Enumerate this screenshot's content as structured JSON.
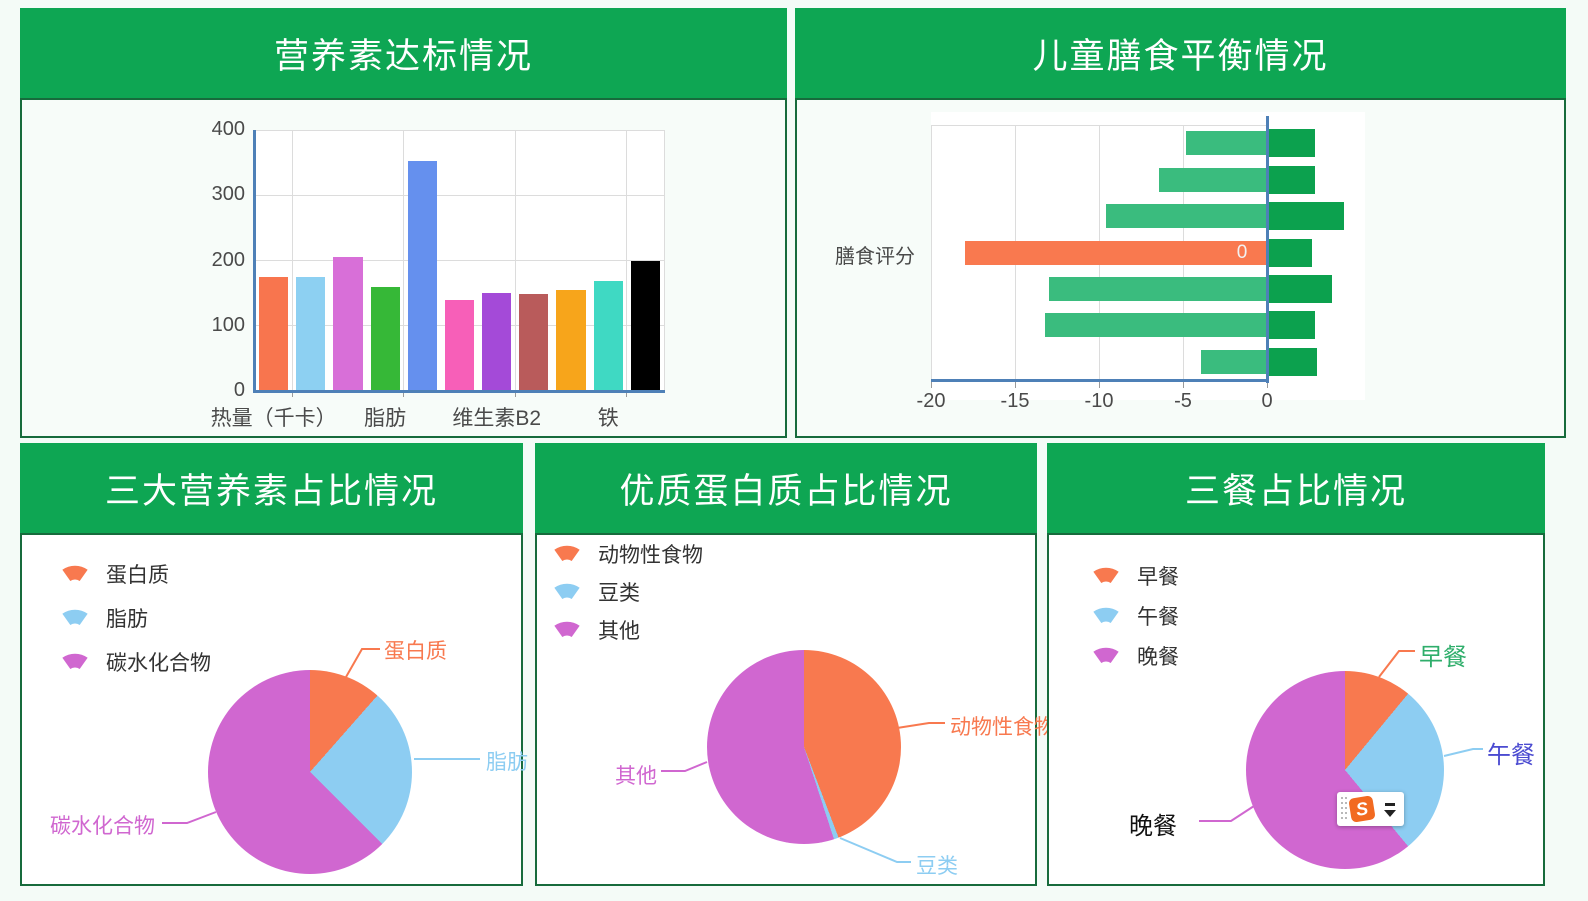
{
  "colors": {
    "header_green": "#0ea653",
    "panel_border_green": "#176b3c",
    "page_background": "#f4fbf7",
    "axis_blue": "#4e80b7",
    "grid_line": "#dcdcdc",
    "tick_text": "#4a4a4a",
    "legend_text": "#333333"
  },
  "chart_data": [
    {
      "type": "bar",
      "title": "营养素达标情况",
      "ylabel": "",
      "ylim": [
        0,
        400
      ],
      "yticks": [
        0,
        100,
        200,
        300,
        400
      ],
      "num_categories": 11,
      "visible_x_labels": [
        {
          "label": "热量（千卡）",
          "category": 1
        },
        {
          "label": "脂肪",
          "category": 4
        },
        {
          "label": "维生素B2",
          "category": 7
        },
        {
          "label": "铁",
          "category": 10
        }
      ],
      "values": [
        175,
        175,
        205,
        160,
        352,
        140,
        150,
        148,
        155,
        168,
        200
      ],
      "bar_colors": [
        "#f8754e",
        "#8dd0f2",
        "#d86fd8",
        "#36b837",
        "#6590ee",
        "#f75fb8",
        "#a44ad8",
        "#b95b5b",
        "#f7a51b",
        "#3fd9c3",
        "#000000"
      ],
      "grid": true
    },
    {
      "type": "bar-horizontal",
      "title": "儿童膳食平衡情况",
      "axis_label": "膳食评分",
      "axis_label_row": 3,
      "xticks": [
        -20,
        -15,
        -10,
        -5,
        0
      ],
      "xlim": [
        -20,
        5
      ],
      "rows": [
        {
          "neg": -4.8,
          "pos": 2.8
        },
        {
          "neg": -6.4,
          "pos": 2.8
        },
        {
          "neg": -9.6,
          "pos": 4.5
        },
        {
          "neg": -18.0,
          "pos": 2.6
        },
        {
          "neg": -13.0,
          "pos": 3.8
        },
        {
          "neg": -13.2,
          "pos": 2.8
        },
        {
          "neg": -3.9,
          "pos": 2.9
        }
      ],
      "highlight_row": 3,
      "highlight_value_label": "0",
      "colors": {
        "negative_bar": "#3abc7e",
        "positive_bar": "#0ca14e",
        "highlight_bar": "#f9794f"
      }
    },
    {
      "type": "pie",
      "title": "三大营养素占比情况",
      "legend_position": "top-left",
      "slices": [
        {
          "name": "蛋白质",
          "percent": 11.5,
          "color": "#f8794f",
          "label_color": "#f8794f"
        },
        {
          "name": "脂肪",
          "percent": 26.0,
          "color": "#8dcdf2",
          "label_color": "#8dcdf2"
        },
        {
          "name": "碳水化合物",
          "percent": 62.5,
          "color": "#d067d0",
          "label_color": "#d067d0"
        }
      ]
    },
    {
      "type": "pie",
      "title": "优质蛋白质占比情况",
      "legend_position": "top-left",
      "slices": [
        {
          "name": "动物性食物",
          "percent": 44.2,
          "color": "#f8794f",
          "label_color": "#f8794f"
        },
        {
          "name": "豆类",
          "percent": 0.8,
          "color": "#8dcdf2",
          "label_color": "#8dcdf2"
        },
        {
          "name": "其他",
          "percent": 55.0,
          "color": "#d067d0",
          "label_color": "#d067d0"
        }
      ]
    },
    {
      "type": "pie",
      "title": "三餐占比情况",
      "legend_position": "top-left",
      "slices": [
        {
          "name": "早餐",
          "percent": 11.0,
          "color": "#f8794f",
          "label_color": "#2fae6b"
        },
        {
          "name": "午餐",
          "percent": 28.0,
          "color": "#8dcdf2",
          "label_color": "#4b4bd1"
        },
        {
          "name": "晚餐",
          "percent": 61.0,
          "color": "#d067d0",
          "label_color": "#111111"
        }
      ]
    }
  ],
  "floating_widget": {
    "logo_letter": "S"
  }
}
